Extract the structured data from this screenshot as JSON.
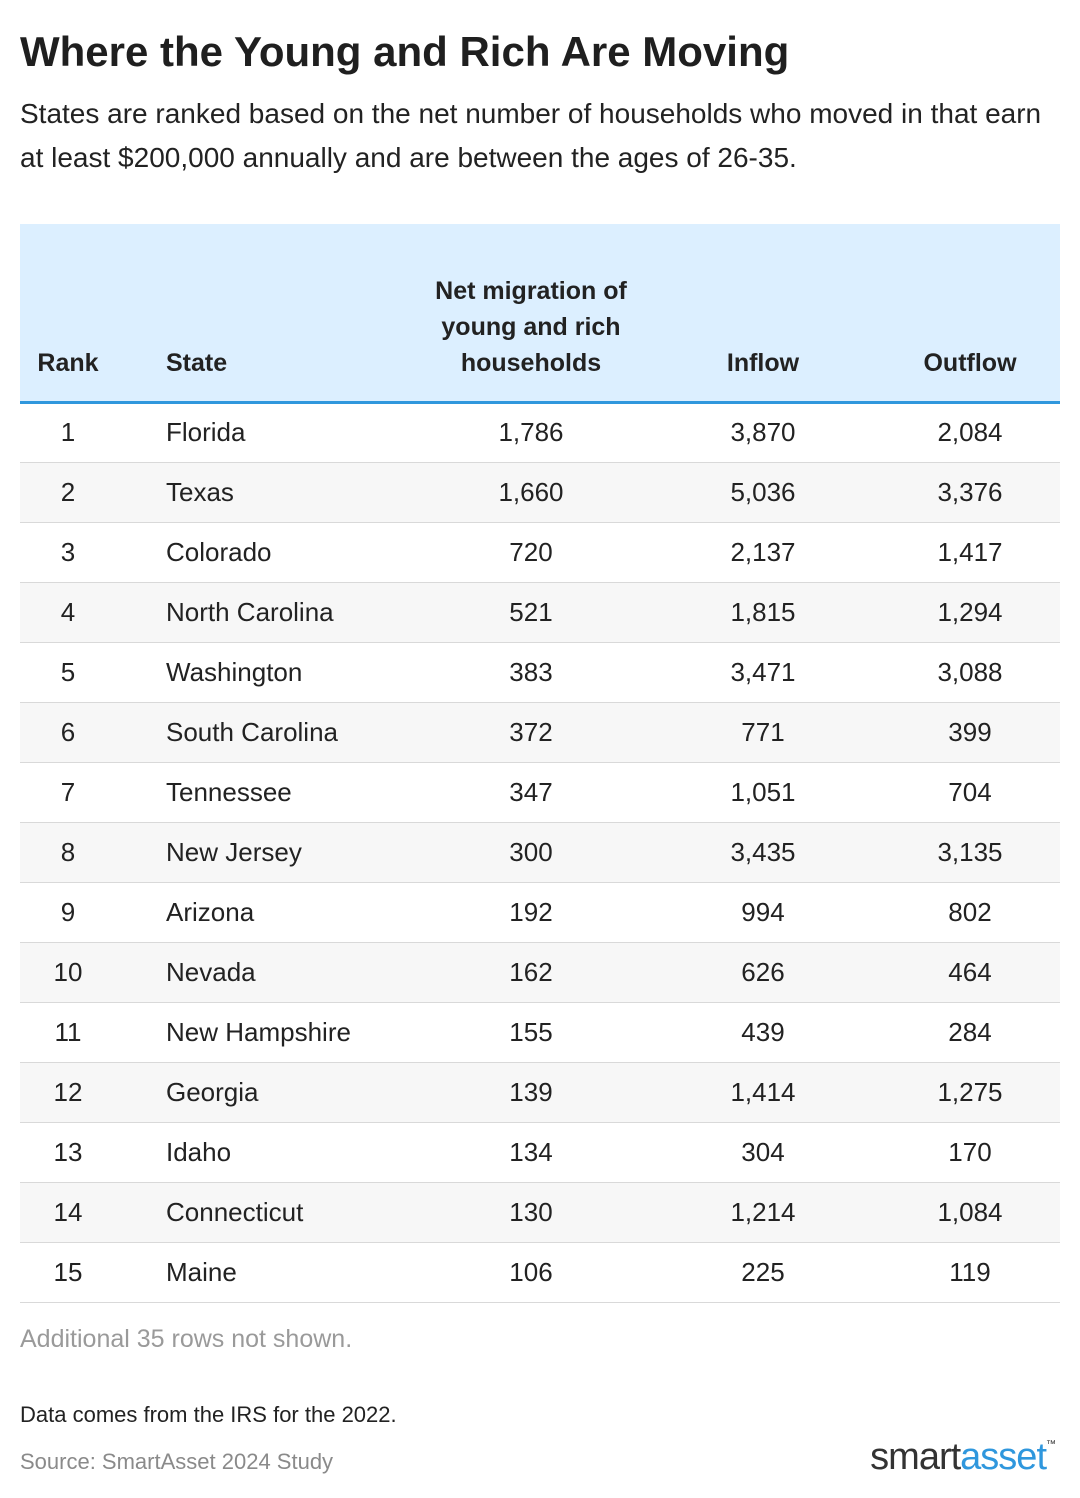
{
  "header": {
    "title": "Where the Young and Rich Are Moving",
    "subtitle": "States are ranked based on the net number of households who moved in that earn at least $200,000 annually and are between the ages of 26-35."
  },
  "table": {
    "columns": [
      "Rank",
      "State",
      "Net migration of young and rich households",
      "Inflow",
      "Outflow"
    ],
    "rows": [
      [
        "1",
        "Florida",
        "1,786",
        "3,870",
        "2,084"
      ],
      [
        "2",
        "Texas",
        "1,660",
        "5,036",
        "3,376"
      ],
      [
        "3",
        "Colorado",
        "720",
        "2,137",
        "1,417"
      ],
      [
        "4",
        "North Carolina",
        "521",
        "1,815",
        "1,294"
      ],
      [
        "5",
        "Washington",
        "383",
        "3,471",
        "3,088"
      ],
      [
        "6",
        "South Carolina",
        "372",
        "771",
        "399"
      ],
      [
        "7",
        "Tennessee",
        "347",
        "1,051",
        "704"
      ],
      [
        "8",
        "New Jersey",
        "300",
        "3,435",
        "3,135"
      ],
      [
        "9",
        "Arizona",
        "192",
        "994",
        "802"
      ],
      [
        "10",
        "Nevada",
        "162",
        "626",
        "464"
      ],
      [
        "11",
        "New Hampshire",
        "155",
        "439",
        "284"
      ],
      [
        "12",
        "Georgia",
        "139",
        "1,414",
        "1,275"
      ],
      [
        "13",
        "Idaho",
        "134",
        "304",
        "170"
      ],
      [
        "14",
        "Connecticut",
        "130",
        "1,214",
        "1,084"
      ],
      [
        "15",
        "Maine",
        "106",
        "225",
        "119"
      ]
    ],
    "more_rows_note": "Additional 35 rows not shown."
  },
  "footer": {
    "note": "Data comes from the IRS for the 2022.",
    "source": "Source: SmartAsset 2024 Study",
    "logo": [
      "smart",
      "asset",
      "™"
    ]
  }
}
